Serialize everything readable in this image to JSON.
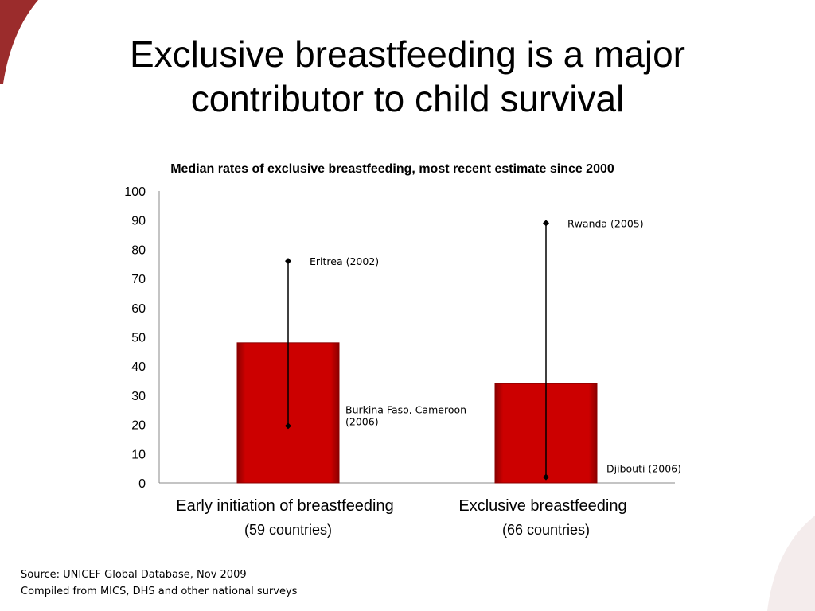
{
  "slide": {
    "title_lines": [
      "Exclusive breastfeeding is a major",
      "contributor to child survival"
    ],
    "source_lines": [
      "Source: UNICEF Global Database, Nov 2009",
      "Compiled from MICS, DHS and other national surveys"
    ]
  },
  "theme": {
    "bar_color": "#cc0000",
    "bar_edge": "#8b0000",
    "accent": "#9b2c2c"
  },
  "chart_data": {
    "type": "bar",
    "title": "Median rates of exclusive breastfeeding, most recent estimate since 2000",
    "categories": [
      "Early initiation of breastfeeding",
      "Exclusive breastfeeding"
    ],
    "category_sublabels": [
      "(59 countries)",
      "(66 countries)"
    ],
    "values": [
      48,
      34
    ],
    "ranges": [
      {
        "max": 76,
        "max_label": "Eritrea (2002)",
        "min": 19.5,
        "min_label": [
          "Burkina Faso, Cameroon",
          "(2006)"
        ]
      },
      {
        "max": 89,
        "max_label": "Rwanda (2005)",
        "min": 2,
        "min_label": [
          "Djibouti (2006)"
        ]
      }
    ],
    "ylim": [
      0,
      100
    ],
    "yticks": [
      0,
      10,
      20,
      30,
      40,
      50,
      60,
      70,
      80,
      90,
      100
    ],
    "grid": false,
    "legend": "none"
  }
}
